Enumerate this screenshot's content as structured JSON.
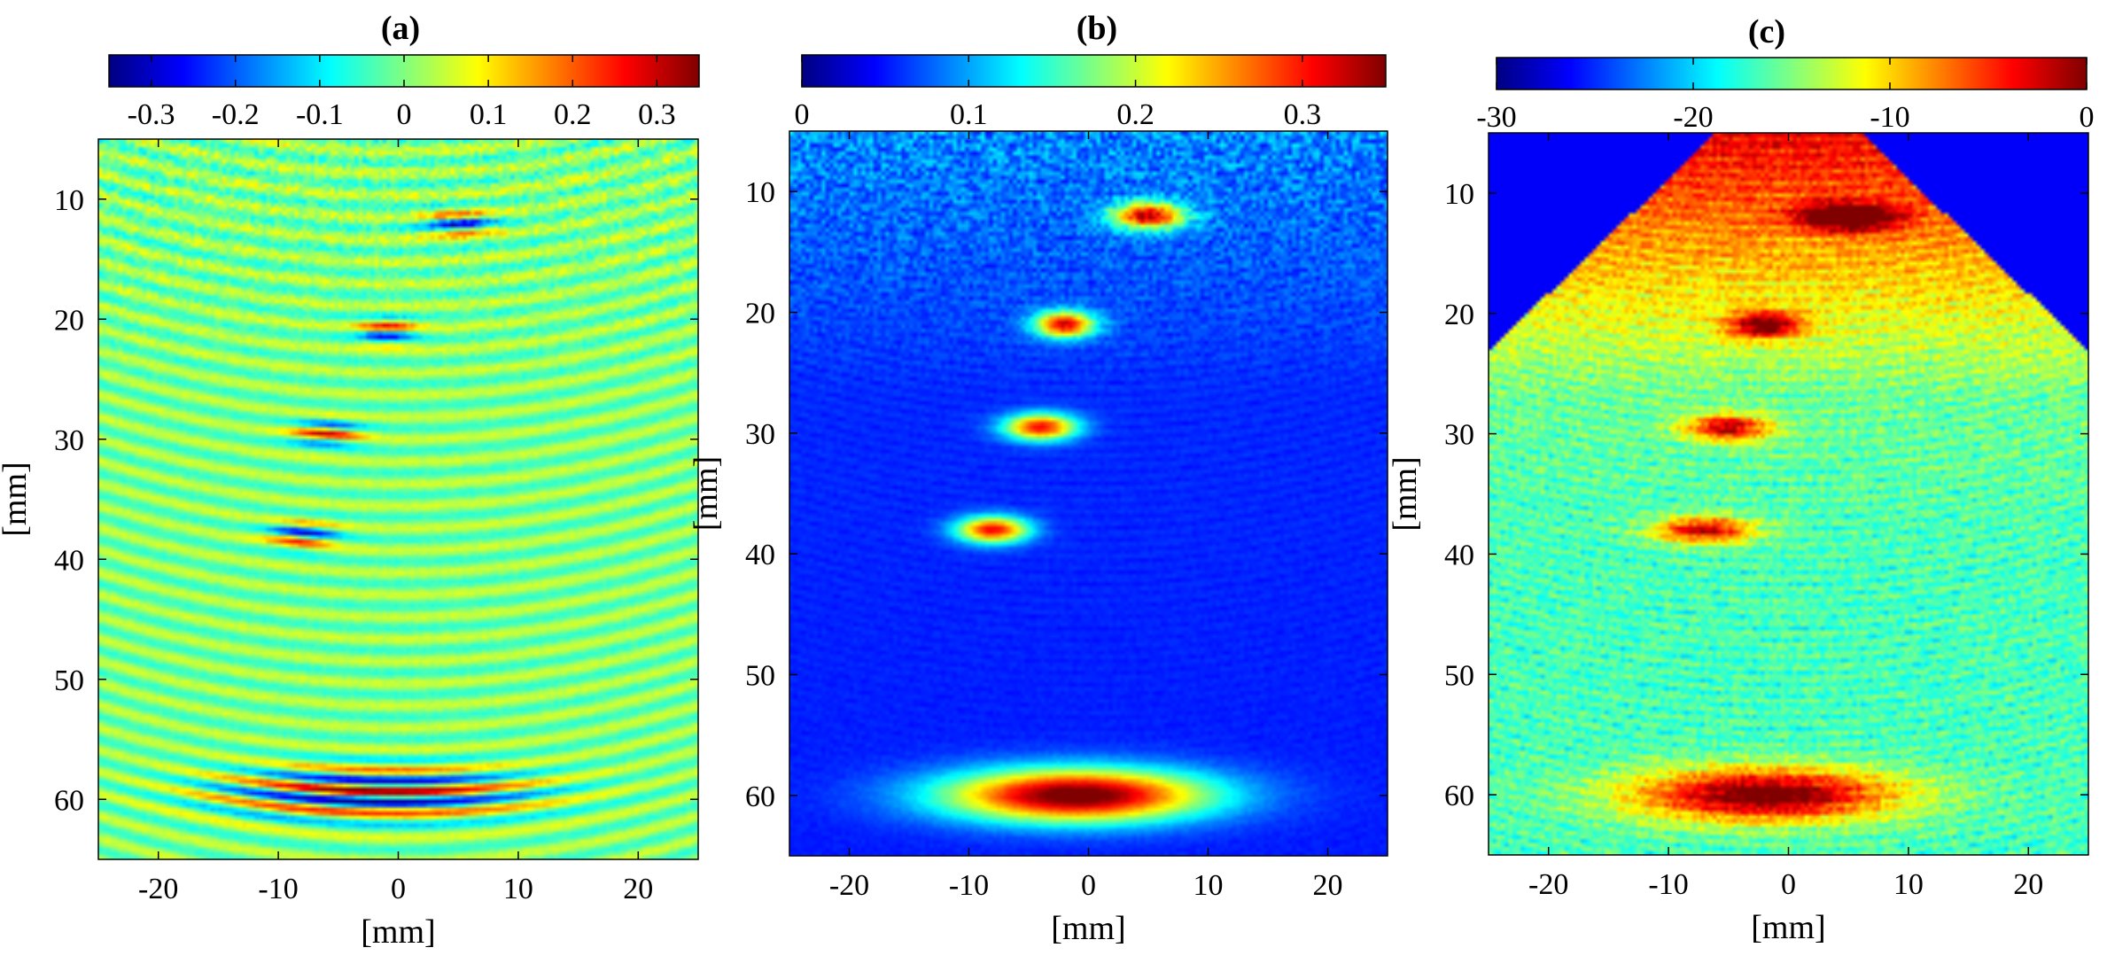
{
  "figure": {
    "description": "Three-panel ultrasound image comparison"
  },
  "chart_data": [
    {
      "type": "heatmap",
      "panel": "a",
      "title": "(a)",
      "xlabel": "[mm]",
      "ylabel": "[mm]",
      "xlim": [
        -25,
        25
      ],
      "ylim": [
        5,
        65
      ],
      "y_reversed": true,
      "xticks": [
        -20,
        -10,
        0,
        10,
        20
      ],
      "yticks": [
        10,
        20,
        30,
        40,
        50,
        60
      ],
      "xtick_labels": [
        "-20",
        "-10",
        "0",
        "10",
        "20"
      ],
      "ytick_labels": [
        "10",
        "20",
        "30",
        "40",
        "50",
        "60"
      ],
      "colormap": "jet",
      "colorbar": {
        "location": "top",
        "clim": [
          -0.35,
          0.35
        ],
        "ticks": [
          -0.3,
          -0.2,
          -0.1,
          0,
          0.1,
          0.2,
          0.3
        ],
        "tick_labels": [
          "-0.3",
          "-0.2",
          "-0.1",
          "0",
          "0.1",
          "0.2",
          "0.3"
        ]
      },
      "mode": "rf",
      "background": "full",
      "features": [
        {
          "x": -2,
          "z": 59.5,
          "w": 13,
          "label": "large reflector band"
        },
        {
          "x": -1,
          "z": 21,
          "w": 2.5
        },
        {
          "x": -6,
          "z": 29.5,
          "w": 3
        },
        {
          "x": -8,
          "z": 38,
          "w": 3
        },
        {
          "x": 5,
          "z": 12,
          "w": 3
        }
      ]
    },
    {
      "type": "heatmap",
      "panel": "b",
      "title": "(b)",
      "xlabel": "[mm]",
      "ylabel": "[mm]",
      "xlim": [
        -25,
        25
      ],
      "ylim": [
        5,
        65
      ],
      "y_reversed": true,
      "xticks": [
        -20,
        -10,
        0,
        10,
        20
      ],
      "yticks": [
        10,
        20,
        30,
        40,
        50,
        60
      ],
      "xtick_labels": [
        "-20",
        "-10",
        "0",
        "10",
        "20"
      ],
      "ytick_labels": [
        "10",
        "20",
        "30",
        "40",
        "50",
        "60"
      ],
      "colormap": "jet",
      "colorbar": {
        "location": "top",
        "clim": [
          0,
          0.35
        ],
        "ticks": [
          0,
          0.1,
          0.2,
          0.3
        ],
        "tick_labels": [
          "0",
          "0.1",
          "0.2",
          "0.3"
        ]
      },
      "mode": "envelope",
      "background": "full",
      "features": [
        {
          "x": -1,
          "z": 60,
          "w": 11,
          "label": "large reflector"
        },
        {
          "x": -2,
          "z": 21,
          "w": 2.5
        },
        {
          "x": -4,
          "z": 29.5,
          "w": 3
        },
        {
          "x": -8,
          "z": 38,
          "w": 3
        },
        {
          "x": 5,
          "z": 12,
          "w": 3
        }
      ]
    },
    {
      "type": "heatmap",
      "panel": "c",
      "title": "(c)",
      "xlabel": "[mm]",
      "ylabel": "[mm]",
      "xlim": [
        -25,
        25
      ],
      "ylim": [
        5,
        65
      ],
      "y_reversed": true,
      "xticks": [
        -20,
        -10,
        0,
        10,
        20
      ],
      "yticks": [
        10,
        20,
        30,
        40,
        50,
        60
      ],
      "xtick_labels": [
        "-20",
        "-10",
        "0",
        "10",
        "20"
      ],
      "ytick_labels": [
        "10",
        "20",
        "30",
        "40",
        "50",
        "60"
      ],
      "colormap": "jet",
      "colorbar": {
        "location": "top",
        "clim": [
          -30,
          0
        ],
        "ticks": [
          -30,
          -20,
          -10,
          0
        ],
        "tick_labels": [
          "-30",
          "-20",
          "-10",
          "0"
        ]
      },
      "mode": "log",
      "background": "sector",
      "features": [
        {
          "x": -2,
          "z": 60,
          "w": 11,
          "label": "large reflector"
        },
        {
          "x": -2,
          "z": 21,
          "w": 3
        },
        {
          "x": -5,
          "z": 29.5,
          "w": 3.5
        },
        {
          "x": -7,
          "z": 38,
          "w": 4
        },
        {
          "x": 5,
          "z": 12,
          "w": 4
        }
      ]
    }
  ]
}
